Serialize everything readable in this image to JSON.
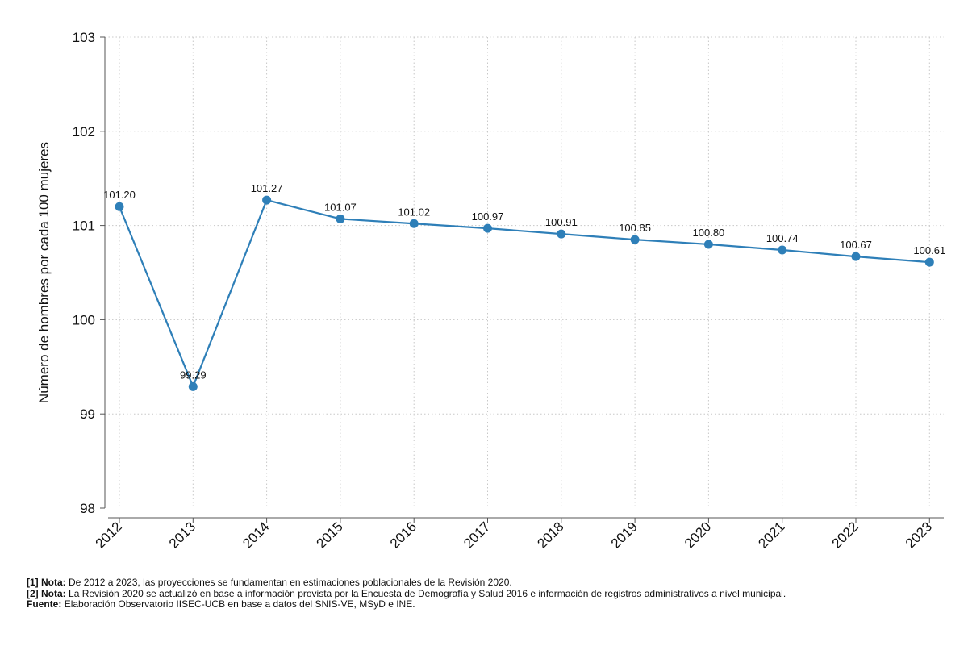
{
  "chart_data": {
    "type": "line",
    "ylabel": "Número de hombres por cada 100 mujeres",
    "ylim": [
      98,
      103
    ],
    "yticks": [
      "98",
      "99",
      "100",
      "101",
      "102",
      "103"
    ],
    "grid": true,
    "series_color": "#2e7fb8",
    "categories": [
      "2012",
      "2013",
      "2014",
      "2015",
      "2016",
      "2017",
      "2018",
      "2019",
      "2020",
      "2021",
      "2022",
      "2023"
    ],
    "values": [
      101.2,
      99.29,
      101.27,
      101.07,
      101.02,
      100.97,
      100.91,
      100.85,
      100.8,
      100.74,
      100.67,
      100.61
    ],
    "value_labels": [
      "101.20",
      "99.29",
      "101.27",
      "101.07",
      "101.02",
      "100.97",
      "100.91",
      "100.85",
      "100.80",
      "100.74",
      "100.67",
      "100.61"
    ]
  },
  "notes": [
    {
      "label": "[1] Nota:",
      "text": "De 2012 a 2023, las proyecciones se fundamentan en estimaciones poblacionales de la Revisión 2020."
    },
    {
      "label": "[2] Nota:",
      "text": "La Revisión 2020 se actualizó en base a información provista por la Encuesta de Demografía y Salud 2016 e información de registros administrativos a nivel municipal."
    },
    {
      "label": "Fuente:",
      "text": "Elaboración Observatorio IISEC-UCB en base a datos del SNIS-VE, MSyD e INE."
    }
  ]
}
